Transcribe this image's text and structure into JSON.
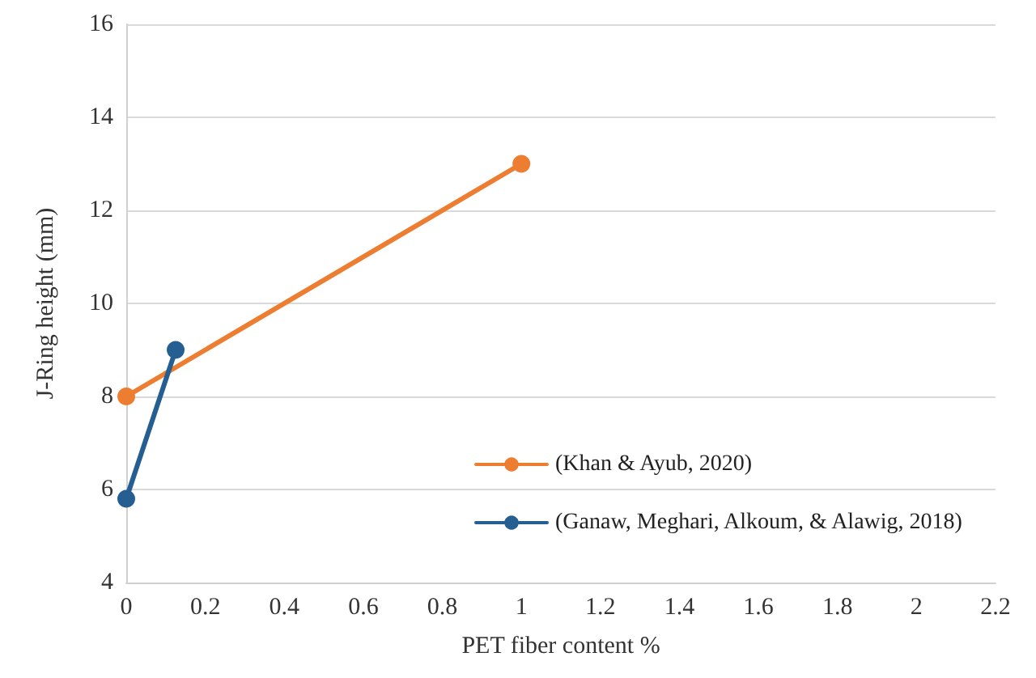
{
  "chart_data": {
    "type": "line",
    "xlabel": "PET fiber content %",
    "ylabel": "J-Ring height (mm)",
    "series": [
      {
        "name": "(Khan & Ayub, 2020)",
        "color": "#ed7d31",
        "x": [
          0,
          1
        ],
        "values": [
          8,
          13
        ]
      },
      {
        "name": "(Ganaw, Meghari, Alkoum, & Alawig, 2018)",
        "color": "#255e91",
        "x": [
          0,
          0.125
        ],
        "values": [
          5.8,
          9
        ]
      }
    ],
    "xlim": [
      0,
      2.2
    ],
    "xticks": [
      0,
      0.2,
      0.4,
      0.6,
      0.8,
      1,
      1.2,
      1.4,
      1.6,
      1.8,
      2,
      2.2
    ],
    "ylim": [
      4,
      16
    ],
    "yticks": [
      4,
      6,
      8,
      10,
      12,
      14,
      16
    ],
    "grid": "y",
    "legend": "bottom right",
    "marker": "circle",
    "line_style": "solid"
  }
}
